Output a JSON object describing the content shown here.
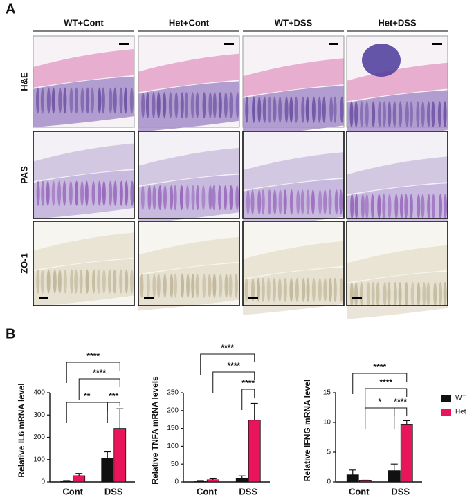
{
  "panel_a": {
    "label": "A",
    "columns": [
      "WT+Cont",
      "Het+Cont",
      "WT+DSS",
      "Het+DSS"
    ],
    "rows": [
      "H&E",
      "PAS",
      "ZO-1"
    ]
  },
  "panel_b": {
    "label": "B"
  },
  "chart_data": [
    {
      "type": "bar",
      "y_label": "Relative IL6 mRNA level",
      "categories": [
        "Cont",
        "DSS"
      ],
      "series": [
        {
          "color": "#111111",
          "values": [
            2,
            105
          ],
          "errors": [
            1,
            30
          ]
        },
        {
          "color": "#e8155a",
          "values": [
            28,
            240
          ],
          "errors": [
            10,
            88
          ]
        }
      ],
      "ylim": [
        0,
        400
      ],
      "yticks": [
        0,
        100,
        200,
        300,
        400
      ],
      "annotations": [
        "****",
        "****",
        "**",
        "***"
      ]
    },
    {
      "type": "bar",
      "y_label": "Relative TNFA mRNA levels",
      "categories": [
        "Cont",
        "DSS"
      ],
      "series": [
        {
          "color": "#111111",
          "values": [
            1,
            10
          ],
          "errors": [
            1,
            7
          ]
        },
        {
          "color": "#e8155a",
          "values": [
            6,
            173
          ],
          "errors": [
            3,
            47
          ]
        }
      ],
      "ylim": [
        0,
        250
      ],
      "yticks": [
        0,
        50,
        100,
        150,
        200,
        250
      ],
      "annotations": [
        "****",
        "****",
        "****"
      ]
    },
    {
      "type": "bar",
      "y_label": "Relative IFNG mRNA level",
      "categories": [
        "Cont",
        "DSS"
      ],
      "series": [
        {
          "name": "WT",
          "color": "#111111",
          "values": [
            1.2,
            1.9
          ],
          "errors": [
            0.8,
            1.1
          ]
        },
        {
          "name": "Het",
          "color": "#e8155a",
          "values": [
            0.2,
            9.6
          ],
          "errors": [
            0.1,
            0.7
          ]
        }
      ],
      "ylim": [
        0,
        15
      ],
      "yticks": [
        0,
        5,
        10,
        15
      ],
      "annotations": [
        "****",
        "****",
        "*",
        "****"
      ]
    }
  ]
}
